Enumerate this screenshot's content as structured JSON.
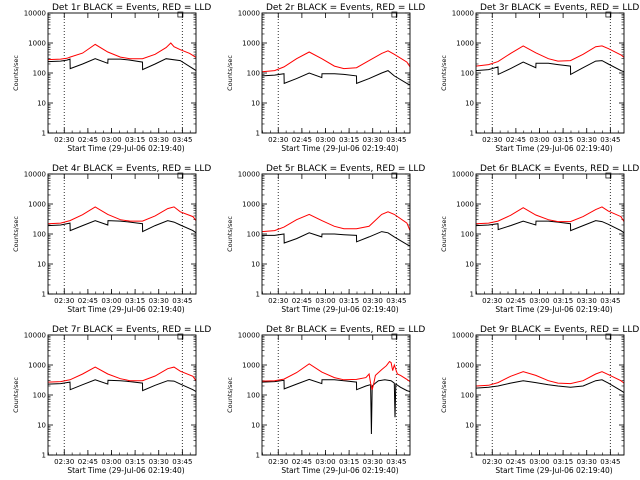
{
  "figure": {
    "xlabel": "Start Time (29-Jul-06 02:19:40)",
    "ylabel": "Counts/sec",
    "x_ticks": [
      "02:30",
      "02:45",
      "03:00",
      "03:15",
      "03:30",
      "03:45"
    ],
    "y_ticks": [
      "1",
      "10",
      "100",
      "1000",
      "10000"
    ],
    "colors": {
      "events": "#000000",
      "lld": "#ff0000",
      "axes": "#000000",
      "background": "#ffffff"
    }
  },
  "chart_data": [
    {
      "type": "line",
      "title": "Det 1r BLACK = Events, RED = LLD",
      "x_unit": "minutes after 02:19:40",
      "xlim": [
        0,
        94
      ],
      "ylim": [
        1,
        10000
      ],
      "yscale": "log",
      "vlines": [
        10.3,
        85.3
      ],
      "series": [
        {
          "name": "Events",
          "color": "#000000",
          "x": [
            0,
            8,
            12,
            14,
            14.1,
            22,
            30,
            38,
            38.1,
            46,
            52,
            60,
            60.1,
            68,
            75,
            84,
            92,
            94
          ],
          "y": [
            240,
            250,
            270,
            290,
            140,
            200,
            300,
            210,
            290,
            290,
            270,
            230,
            130,
            200,
            300,
            260,
            140,
            120
          ]
        },
        {
          "name": "LLD",
          "color": "#ff0000",
          "x": [
            0,
            8,
            12,
            14,
            22,
            30,
            38,
            46,
            52,
            60,
            68,
            75,
            78,
            80,
            84,
            90,
            94
          ],
          "y": [
            280,
            290,
            310,
            340,
            460,
            900,
            500,
            340,
            300,
            300,
            420,
            700,
            1000,
            750,
            600,
            450,
            330
          ]
        }
      ]
    },
    {
      "type": "line",
      "title": "Det 2r BLACK = Events, RED = LLD",
      "x_unit": "minutes after 02:19:40",
      "xlim": [
        0,
        94
      ],
      "ylim": [
        1,
        10000
      ],
      "yscale": "log",
      "vlines": [
        10.3,
        85.3
      ],
      "series": [
        {
          "name": "Events",
          "color": "#000000",
          "x": [
            0,
            8,
            14,
            14.1,
            22,
            30,
            38,
            38.1,
            46,
            52,
            60,
            60.1,
            68,
            76,
            80,
            84,
            92,
            94
          ],
          "y": [
            80,
            85,
            95,
            45,
            65,
            100,
            70,
            95,
            95,
            90,
            80,
            45,
            65,
            100,
            120,
            80,
            45,
            40
          ]
        },
        {
          "name": "LLD",
          "color": "#ff0000",
          "x": [
            0,
            8,
            14,
            22,
            30,
            38,
            46,
            52,
            60,
            68,
            76,
            80,
            84,
            92,
            94
          ],
          "y": [
            110,
            120,
            160,
            300,
            500,
            300,
            170,
            140,
            150,
            260,
            450,
            550,
            420,
            230,
            160
          ]
        }
      ]
    },
    {
      "type": "line",
      "title": "Det 3r BLACK = Events, RED = LLD",
      "x_unit": "minutes after 02:19:40",
      "xlim": [
        0,
        94
      ],
      "ylim": [
        1,
        10000
      ],
      "yscale": "log",
      "vlines": [
        10.3,
        85.3
      ],
      "series": [
        {
          "name": "Events",
          "color": "#000000",
          "x": [
            0,
            8,
            14,
            14.1,
            22,
            30,
            38,
            38.1,
            46,
            52,
            60,
            60.1,
            68,
            76,
            80,
            84,
            92,
            94
          ],
          "y": [
            120,
            130,
            160,
            90,
            140,
            230,
            150,
            210,
            210,
            190,
            170,
            90,
            150,
            250,
            260,
            200,
            120,
            110
          ]
        },
        {
          "name": "LLD",
          "color": "#ff0000",
          "x": [
            0,
            8,
            14,
            22,
            30,
            38,
            46,
            52,
            60,
            68,
            76,
            80,
            84,
            92,
            94
          ],
          "y": [
            170,
            190,
            240,
            450,
            800,
            470,
            300,
            250,
            260,
            420,
            750,
            800,
            650,
            400,
            330
          ]
        }
      ]
    },
    {
      "type": "line",
      "title": "Det 4r BLACK = Events, RED = LLD",
      "x_unit": "minutes after 02:19:40",
      "xlim": [
        0,
        94
      ],
      "ylim": [
        1,
        10000
      ],
      "yscale": "log",
      "vlines": [
        10.3,
        85.3
      ],
      "series": [
        {
          "name": "Events",
          "color": "#000000",
          "x": [
            0,
            8,
            14,
            14.1,
            22,
            30,
            38,
            38.1,
            46,
            52,
            60,
            60.1,
            68,
            76,
            80,
            84,
            92,
            94
          ],
          "y": [
            190,
            200,
            230,
            130,
            190,
            280,
            200,
            280,
            270,
            250,
            220,
            120,
            190,
            280,
            250,
            200,
            130,
            110
          ]
        },
        {
          "name": "LLD",
          "color": "#ff0000",
          "x": [
            0,
            8,
            14,
            22,
            30,
            38,
            46,
            52,
            60,
            68,
            76,
            80,
            84,
            92,
            94
          ],
          "y": [
            220,
            230,
            280,
            440,
            800,
            450,
            300,
            270,
            270,
            400,
            700,
            800,
            550,
            380,
            280
          ]
        }
      ]
    },
    {
      "type": "line",
      "title": "Det 5r BLACK = Events, RED = LLD",
      "x_unit": "minutes after 02:19:40",
      "xlim": [
        0,
        94
      ],
      "ylim": [
        1,
        10000
      ],
      "yscale": "log",
      "vlines": [
        10.3,
        85.3
      ],
      "series": [
        {
          "name": "Events",
          "color": "#000000",
          "x": [
            0,
            8,
            14,
            14.1,
            22,
            30,
            38,
            38.1,
            46,
            52,
            60,
            60.1,
            68,
            76,
            80,
            84,
            92,
            94
          ],
          "y": [
            90,
            90,
            100,
            50,
            70,
            110,
            80,
            100,
            100,
            95,
            90,
            55,
            80,
            120,
            110,
            80,
            45,
            40
          ]
        },
        {
          "name": "LLD",
          "color": "#ff0000",
          "x": [
            0,
            8,
            14,
            22,
            30,
            38,
            46,
            52,
            60,
            68,
            76,
            80,
            84,
            92,
            94
          ],
          "y": [
            120,
            130,
            170,
            300,
            450,
            280,
            180,
            150,
            150,
            180,
            450,
            550,
            450,
            230,
            130
          ]
        }
      ]
    },
    {
      "type": "line",
      "title": "Det 6r BLACK = Events, RED = LLD",
      "x_unit": "minutes after 02:19:40",
      "xlim": [
        0,
        94
      ],
      "ylim": [
        1,
        10000
      ],
      "yscale": "log",
      "vlines": [
        10.3,
        85.3
      ],
      "series": [
        {
          "name": "Events",
          "color": "#000000",
          "x": [
            0,
            8,
            14,
            14.1,
            22,
            30,
            38,
            38.1,
            46,
            52,
            60,
            60.1,
            68,
            76,
            80,
            84,
            92,
            94
          ],
          "y": [
            190,
            200,
            220,
            140,
            190,
            270,
            200,
            270,
            270,
            250,
            220,
            130,
            190,
            280,
            260,
            210,
            130,
            110
          ]
        },
        {
          "name": "LLD",
          "color": "#ff0000",
          "x": [
            0,
            8,
            14,
            22,
            30,
            38,
            46,
            52,
            60,
            68,
            76,
            80,
            84,
            92,
            94
          ],
          "y": [
            220,
            230,
            270,
            420,
            750,
            430,
            300,
            260,
            260,
            380,
            650,
            800,
            580,
            380,
            260
          ]
        }
      ]
    },
    {
      "type": "line",
      "title": "Det 7r BLACK = Events, RED = LLD",
      "x_unit": "minutes after 02:19:40",
      "xlim": [
        0,
        94
      ],
      "ylim": [
        1,
        10000
      ],
      "yscale": "log",
      "vlines": [
        10.3,
        85.3
      ],
      "series": [
        {
          "name": "Events",
          "color": "#000000",
          "x": [
            0,
            8,
            14,
            14.1,
            22,
            30,
            38,
            38.1,
            46,
            52,
            60,
            60.1,
            68,
            76,
            80,
            84,
            92,
            94
          ],
          "y": [
            230,
            240,
            270,
            150,
            220,
            320,
            230,
            310,
            300,
            280,
            250,
            140,
            210,
            300,
            290,
            230,
            150,
            130
          ]
        },
        {
          "name": "LLD",
          "color": "#ff0000",
          "x": [
            0,
            8,
            14,
            22,
            30,
            38,
            46,
            52,
            60,
            68,
            76,
            80,
            84,
            92,
            94
          ],
          "y": [
            270,
            280,
            320,
            500,
            850,
            500,
            350,
            300,
            300,
            430,
            750,
            850,
            620,
            420,
            300
          ]
        }
      ]
    },
    {
      "type": "line",
      "title": "Det 8r BLACK = Events, RED = LLD",
      "x_unit": "minutes after 02:19:40",
      "xlim": [
        0,
        94
      ],
      "ylim": [
        1,
        10000
      ],
      "yscale": "log",
      "vlines": [
        10.3,
        85.3
      ],
      "series": [
        {
          "name": "Events",
          "color": "#000000",
          "x": [
            0,
            8,
            14,
            14.1,
            22,
            30,
            38,
            38.1,
            46,
            52,
            60,
            60.1,
            66,
            69,
            69.5,
            70,
            72,
            74,
            78,
            82,
            84,
            84.5,
            85,
            88,
            92,
            94
          ],
          "y": [
            270,
            280,
            310,
            160,
            230,
            330,
            240,
            320,
            320,
            300,
            270,
            150,
            200,
            220,
            5,
            200,
            250,
            300,
            320,
            300,
            250,
            18,
            230,
            180,
            140,
            130
          ]
        },
        {
          "name": "LLD",
          "color": "#ff0000",
          "x": [
            0,
            8,
            14,
            22,
            30,
            38,
            46,
            52,
            60,
            66,
            68,
            69,
            70,
            71,
            72,
            76,
            79,
            81,
            82,
            83,
            84,
            86,
            88,
            92,
            94
          ],
          "y": [
            290,
            300,
            340,
            560,
            1100,
            580,
            380,
            320,
            330,
            380,
            500,
            250,
            150,
            250,
            450,
            700,
            950,
            1300,
            1200,
            650,
            1000,
            500,
            450,
            330,
            280
          ]
        }
      ]
    },
    {
      "type": "line",
      "title": "Det 9r BLACK = Events, RED = LLD",
      "x_unit": "minutes after 02:19:40",
      "xlim": [
        0,
        94
      ],
      "ylim": [
        1,
        10000
      ],
      "yscale": "log",
      "vlines": [
        10.3,
        85.3
      ],
      "series": [
        {
          "name": "Events",
          "color": "#000000",
          "x": [
            0,
            8,
            14,
            22,
            30,
            38,
            46,
            52,
            60,
            68,
            76,
            80,
            84,
            92,
            94
          ],
          "y": [
            170,
            180,
            200,
            250,
            300,
            260,
            220,
            200,
            180,
            200,
            300,
            320,
            250,
            140,
            120
          ]
        },
        {
          "name": "LLD",
          "color": "#ff0000",
          "x": [
            0,
            8,
            14,
            22,
            30,
            38,
            46,
            52,
            60,
            68,
            76,
            80,
            84,
            92,
            94
          ],
          "y": [
            200,
            210,
            260,
            420,
            600,
            450,
            300,
            250,
            240,
            300,
            500,
            600,
            480,
            300,
            250
          ]
        }
      ]
    }
  ]
}
